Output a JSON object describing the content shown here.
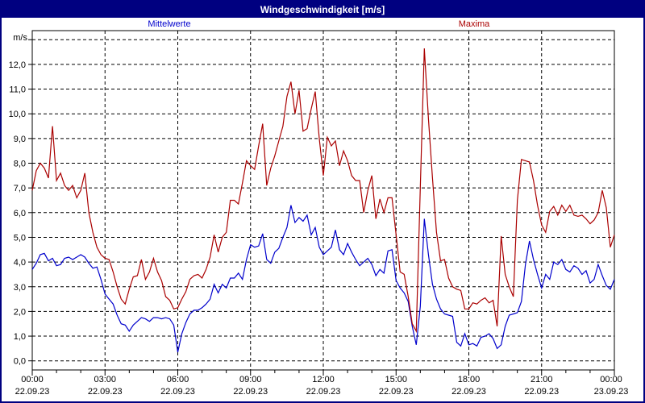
{
  "window": {
    "title": "Windgeschwindigkeit [m/s]"
  },
  "colors": {
    "titlebar_bg": "#000080",
    "titlebar_text": "#ffffff",
    "window_border": "#000080",
    "background": "#ffffff",
    "grid": "#000000",
    "axis_text": "#000000",
    "mittelwerte": "#0000cc",
    "maxima": "#aa0000"
  },
  "chart_data": {
    "type": "line",
    "title": "Windgeschwindigkeit [m/s]",
    "unit_label": "m/s",
    "grid": "dashed",
    "legend_position": "top",
    "x_start_hour": 0,
    "x_end_hour": 24,
    "sample_step_minutes": 10,
    "x_tick_interval_hours": 3,
    "ylim": [
      0,
      13
    ],
    "y_ticks": [
      "0,0",
      "1,0",
      "2,0",
      "3,0",
      "4,0",
      "5,0",
      "6,0",
      "7,0",
      "8,0",
      "9,0",
      "10,0",
      "11,0",
      "12,0"
    ],
    "x_ticks": [
      {
        "time": "00:00",
        "date": "22.09.23"
      },
      {
        "time": "03:00",
        "date": "22.09.23"
      },
      {
        "time": "06:00",
        "date": "22.09.23"
      },
      {
        "time": "09:00",
        "date": "22.09.23"
      },
      {
        "time": "12:00",
        "date": "22.09.23"
      },
      {
        "time": "15:00",
        "date": "22.09.23"
      },
      {
        "time": "18:00",
        "date": "22.09.23"
      },
      {
        "time": "21:00",
        "date": "22.09.23"
      },
      {
        "time": "00:00",
        "date": "23.09.23"
      }
    ],
    "series": [
      {
        "name": "Mittelwerte",
        "color": "#0000cc",
        "values": [
          3.7,
          3.95,
          4.3,
          4.35,
          4.05,
          4.15,
          3.85,
          3.9,
          4.15,
          4.2,
          4.1,
          4.2,
          4.3,
          4.2,
          3.95,
          3.75,
          3.8,
          3.3,
          2.7,
          2.5,
          2.3,
          1.85,
          1.5,
          1.45,
          1.2,
          1.45,
          1.6,
          1.75,
          1.7,
          1.6,
          1.75,
          1.75,
          1.7,
          1.75,
          1.7,
          1.45,
          0.35,
          1.1,
          1.55,
          1.9,
          2.05,
          2.05,
          2.15,
          2.3,
          2.5,
          3.1,
          2.75,
          3.1,
          2.95,
          3.35,
          3.35,
          3.55,
          3.3,
          4.1,
          4.7,
          4.6,
          4.65,
          5.15,
          4.1,
          3.95,
          4.4,
          4.55,
          5.0,
          5.4,
          6.3,
          5.6,
          5.8,
          5.65,
          5.9,
          5.1,
          5.4,
          4.6,
          4.3,
          4.45,
          4.6,
          5.3,
          4.5,
          4.3,
          4.75,
          4.4,
          4.1,
          3.85,
          4.0,
          4.15,
          3.9,
          3.45,
          3.7,
          3.55,
          4.45,
          4.5,
          3.25,
          2.95,
          2.75,
          2.4,
          1.4,
          0.65,
          2.2,
          5.75,
          4.3,
          3.1,
          2.5,
          2.1,
          1.9,
          1.85,
          1.8,
          0.75,
          0.6,
          1.1,
          0.65,
          0.7,
          0.6,
          0.95,
          1.0,
          1.1,
          0.9,
          0.5,
          0.65,
          1.4,
          1.85,
          1.9,
          1.95,
          2.4,
          3.9,
          4.85,
          4.1,
          3.5,
          2.95,
          3.5,
          3.3,
          4.0,
          3.9,
          4.1,
          3.7,
          3.6,
          3.85,
          3.75,
          3.5,
          3.65,
          3.15,
          3.3,
          3.9,
          3.45,
          3.05,
          2.9,
          3.3
        ]
      },
      {
        "name": "Maxima",
        "color": "#aa0000",
        "values": [
          6.9,
          7.7,
          8.0,
          7.8,
          7.4,
          9.5,
          7.3,
          7.6,
          7.1,
          6.9,
          7.1,
          6.6,
          6.9,
          7.6,
          6.0,
          5.2,
          4.6,
          4.3,
          4.15,
          4.1,
          3.6,
          3.0,
          2.5,
          2.3,
          2.9,
          3.4,
          3.45,
          4.1,
          3.3,
          3.6,
          4.15,
          3.6,
          3.25,
          2.6,
          2.45,
          2.1,
          2.15,
          2.5,
          2.8,
          3.3,
          3.45,
          3.5,
          3.35,
          3.7,
          4.2,
          5.1,
          4.4,
          5.0,
          5.2,
          6.5,
          6.5,
          6.35,
          7.2,
          8.1,
          7.9,
          7.75,
          8.7,
          9.6,
          7.1,
          7.8,
          8.3,
          8.9,
          9.5,
          10.7,
          11.3,
          10.0,
          10.95,
          9.3,
          9.4,
          10.2,
          10.9,
          9.0,
          7.5,
          9.05,
          8.7,
          8.9,
          7.9,
          8.5,
          8.1,
          7.5,
          7.3,
          7.3,
          6.0,
          6.9,
          7.5,
          5.75,
          6.55,
          6.0,
          6.6,
          6.6,
          5.1,
          3.6,
          3.5,
          2.6,
          1.5,
          1.2,
          7.0,
          12.65,
          9.8,
          7.4,
          5.2,
          4.05,
          4.1,
          3.35,
          3.0,
          2.9,
          2.85,
          2.1,
          2.1,
          2.35,
          2.3,
          2.45,
          2.55,
          2.35,
          2.45,
          1.4,
          5.05,
          3.5,
          3.0,
          2.6,
          6.5,
          8.15,
          8.1,
          8.05,
          7.3,
          6.3,
          5.5,
          5.2,
          6.05,
          6.25,
          5.9,
          6.3,
          6.05,
          6.3,
          5.9,
          5.85,
          5.9,
          5.75,
          5.55,
          5.7,
          6.0,
          6.9,
          6.2,
          4.6,
          5.1
        ]
      }
    ]
  }
}
